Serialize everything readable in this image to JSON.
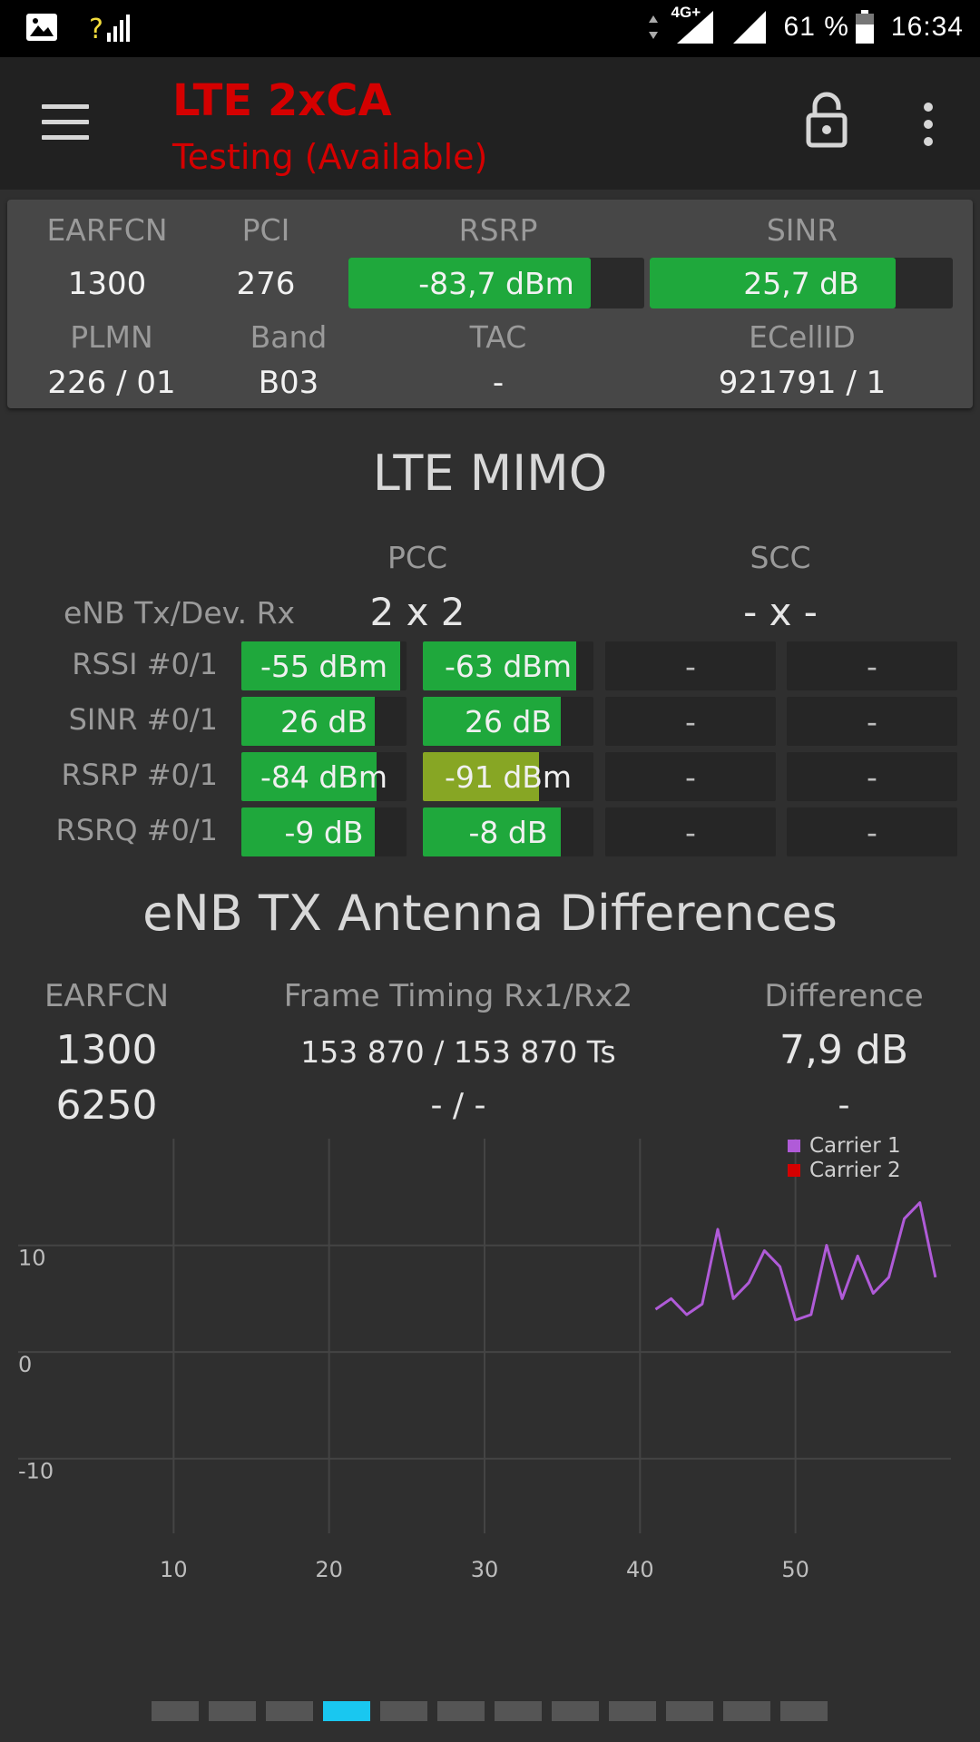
{
  "status_bar": {
    "battery_text": "61 %",
    "time": "16:34",
    "network_type": "4G+",
    "question_mark": "?"
  },
  "app_bar": {
    "title": "LTE 2xCA",
    "subtitle": "Testing (Available)",
    "icons": [
      "menu-icon",
      "lock-open-icon",
      "more-vert-icon"
    ]
  },
  "info_card": {
    "earfcn_label": "EARFCN",
    "pci_label": "PCI",
    "rsrp_label": "RSRP",
    "sinr_label": "SINR",
    "earfcn_value": "1300",
    "pci_value": "276",
    "rsrp_value": "-83,7 dBm",
    "rsrp_fill": 0.82,
    "sinr_value": "25,7 dB",
    "sinr_fill": 0.81,
    "plmn_label": "PLMN",
    "band_label": "Band",
    "tac_label": "TAC",
    "ecellid_label": "ECellID",
    "plmn_value": "226 / 01",
    "band_value": "B03",
    "tac_value": "-",
    "ecellid_value": "921791 / 1"
  },
  "mimo": {
    "title": "LTE MIMO",
    "pcc_label": "PCC",
    "scc_label": "SCC",
    "tx_rx_label": "eNB Tx/Dev. Rx",
    "pcc_tx_rx": "2 x 2",
    "scc_tx_rx": "- x -",
    "rows": [
      {
        "label": "RSSI #0/1",
        "pcc0": "-55 dBm",
        "pcc0_fill": 0.96,
        "pcc1": "-63 dBm",
        "pcc1_fill": 0.9,
        "scc0": "-",
        "scc1": "-"
      },
      {
        "label": "SINR #0/1",
        "pcc0": "26 dB",
        "pcc0_fill": 0.81,
        "pcc1": "26 dB",
        "pcc1_fill": 0.81,
        "scc0": "-",
        "scc1": "-"
      },
      {
        "label": "RSRP #0/1",
        "pcc0": "-84 dBm",
        "pcc0_fill": 0.82,
        "pcc1": "-91 dBm",
        "pcc1_fill": 0.68,
        "scc0": "-",
        "scc1": "-"
      },
      {
        "label": "RSRQ #0/1",
        "pcc0": "-9 dB",
        "pcc0_fill": 0.81,
        "pcc1": "-8 dB",
        "pcc1_fill": 0.81,
        "scc0": "-",
        "scc1": "-"
      }
    ]
  },
  "antenna_diff": {
    "title": "eNB TX Antenna Differences",
    "earfcn_label": "EARFCN",
    "timing_label": "Frame Timing Rx1/Rx2",
    "difference_label": "Difference",
    "rows": [
      {
        "earfcn": "1300",
        "timing": "153 870 / 153 870 Ts",
        "difference": "7,9 dB"
      },
      {
        "earfcn": "6250",
        "timing": "- / -",
        "difference": "-"
      }
    ]
  },
  "chart_data": {
    "type": "line",
    "x_ticks": [
      "10",
      "20",
      "30",
      "40",
      "50"
    ],
    "y_ticks": [
      "10",
      "0",
      "-10"
    ],
    "xlim": [
      0,
      60
    ],
    "ylim": [
      -17,
      20
    ],
    "grid": true,
    "legend_position": "top-right",
    "series": [
      {
        "name": "Carrier 1",
        "color": "#b05bd8",
        "x": [
          41,
          42,
          43,
          44,
          45,
          46,
          47,
          48,
          49,
          50,
          51,
          52,
          53,
          54,
          55,
          56,
          57,
          58,
          59
        ],
        "y": [
          4,
          5,
          3.5,
          4.5,
          11.5,
          5,
          6.5,
          9.5,
          8,
          3,
          3.5,
          10,
          5,
          9,
          5.5,
          7,
          12.5,
          14,
          7
        ]
      },
      {
        "name": "Carrier 2",
        "color": "#d40000",
        "x": [],
        "y": []
      }
    ]
  },
  "pager": {
    "count": 12,
    "active_index": 3
  }
}
